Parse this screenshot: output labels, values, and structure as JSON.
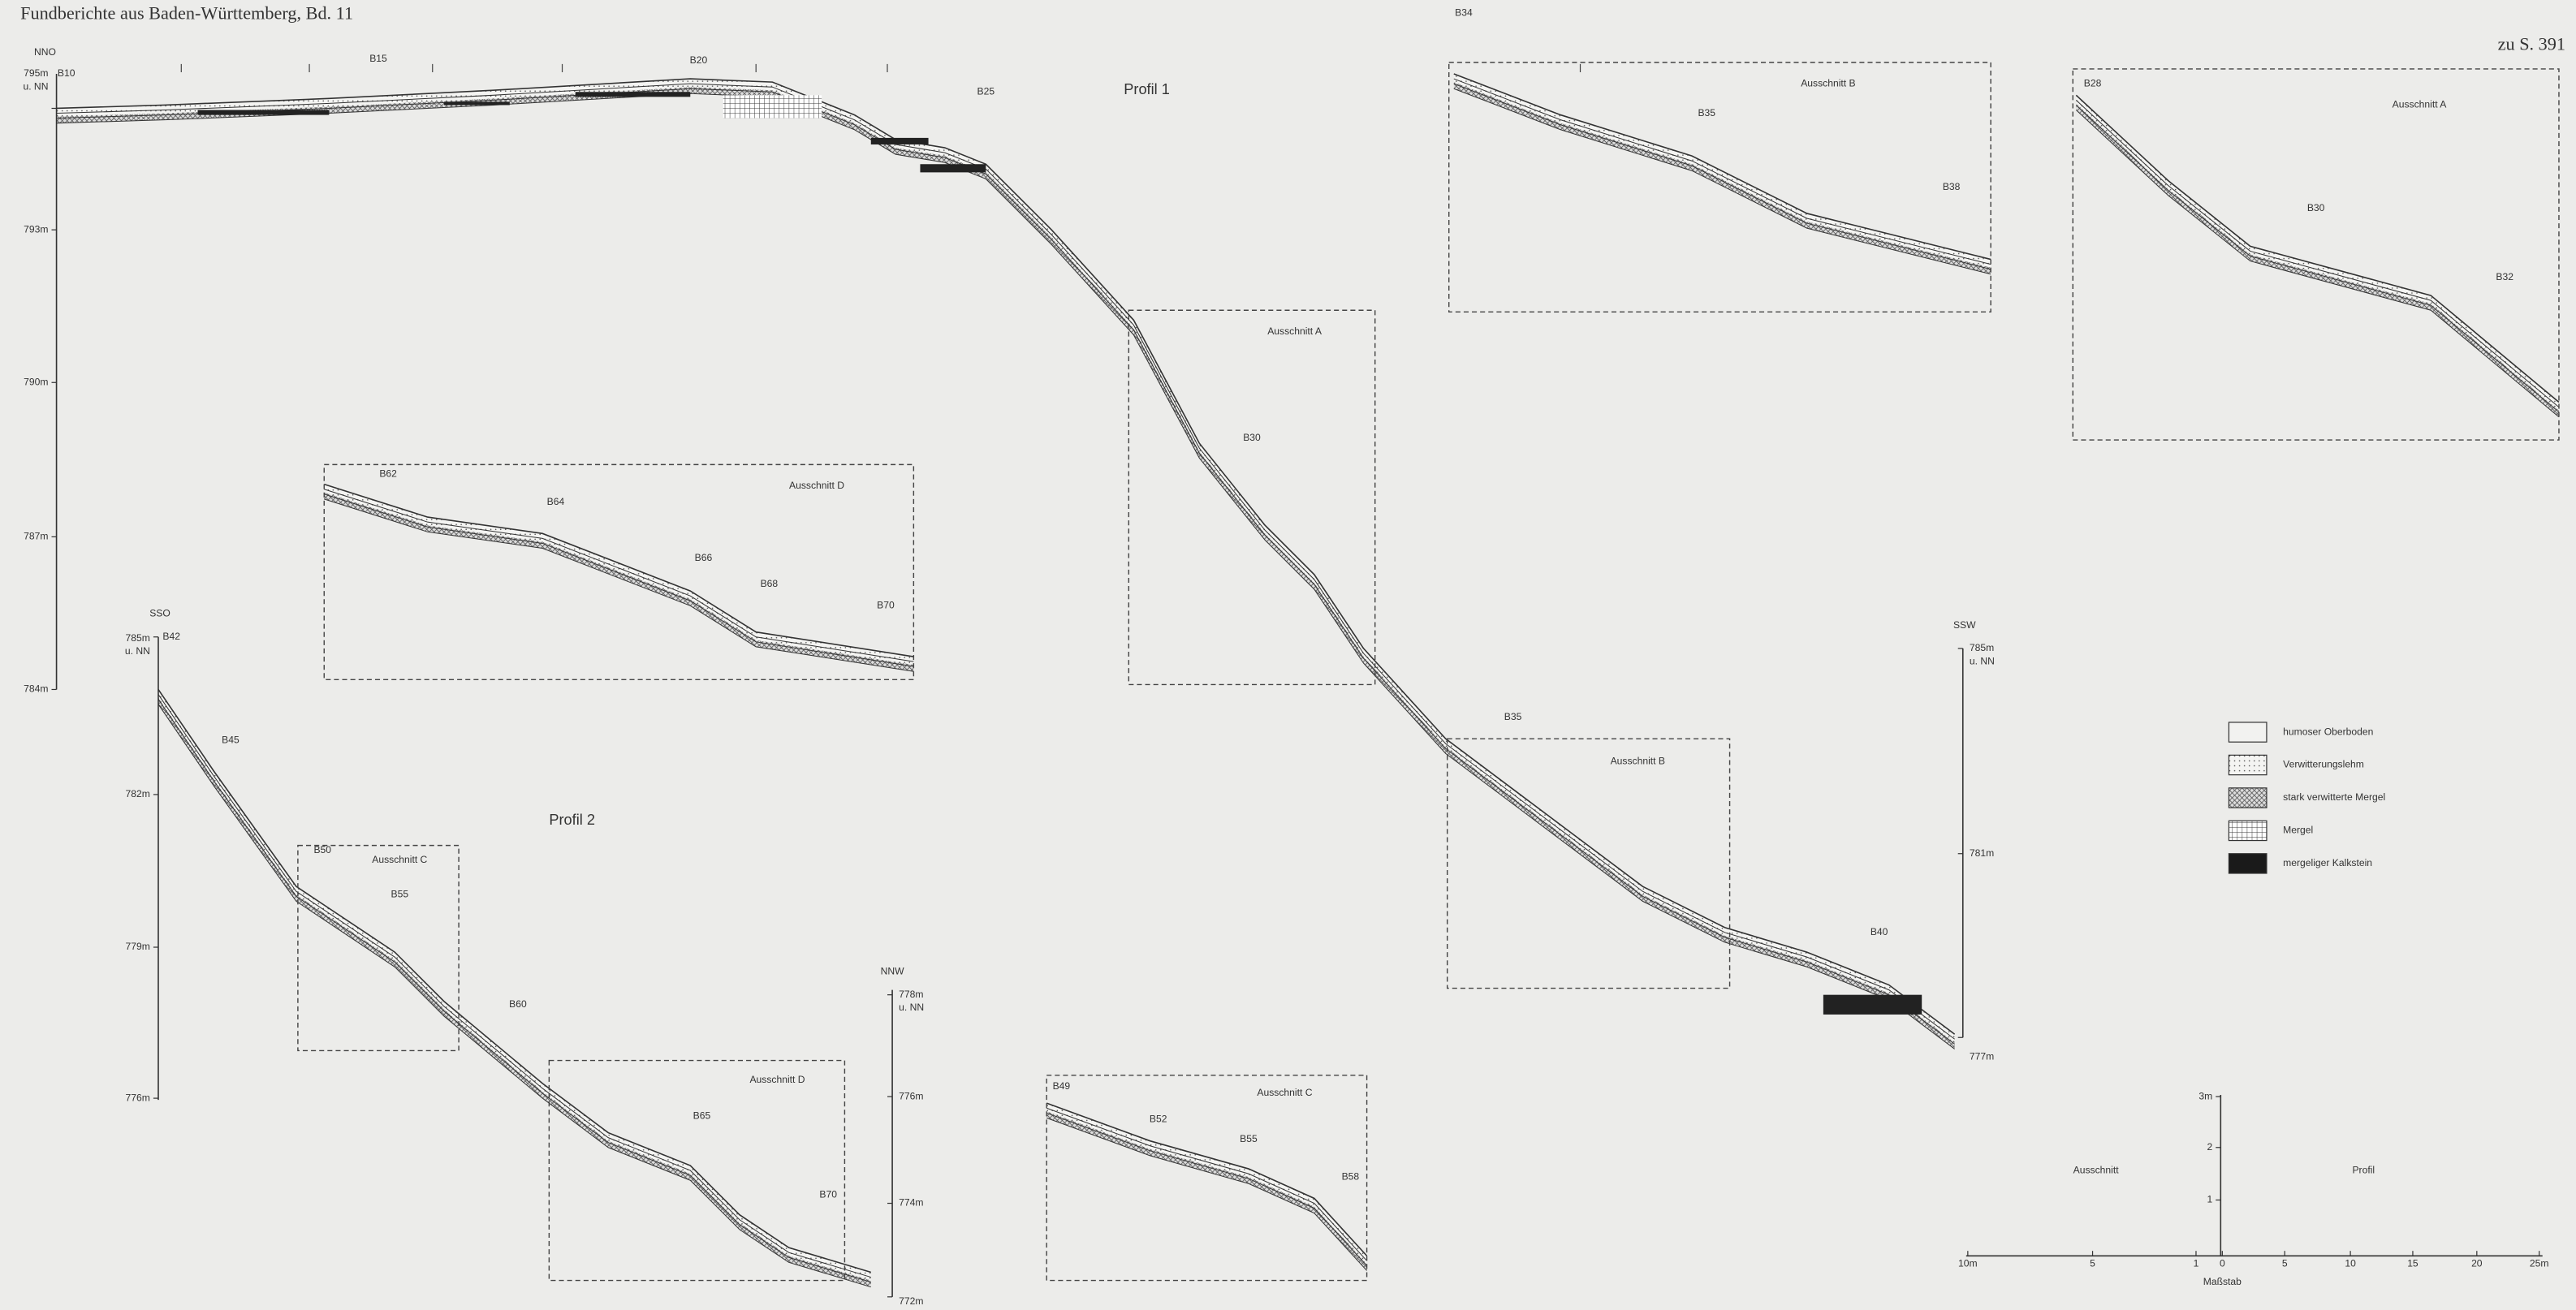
{
  "header": {
    "title": "Fundberichte aus Baden-Württemberg, Bd. 11",
    "page_ref": "zu S. 391"
  },
  "profil_1": {
    "title": "Profil 1",
    "labels": [
      "NNO",
      "SSW",
      "B10",
      "B15",
      "B20",
      "B25",
      "B30",
      "B35",
      "B40",
      "Ausschnitt A",
      "Ausschnitt B"
    ],
    "left_axis": [
      "795m",
      "u. NN",
      "793m",
      "790m",
      "787m",
      "784m"
    ],
    "right_axis": [
      "785m",
      "u. NN",
      "781m",
      "777m"
    ]
  },
  "profil_2": {
    "title": "Profil 2",
    "labels": [
      "SSO",
      "NNW",
      "B42",
      "B45",
      "B50",
      "B55",
      "B60",
      "B65",
      "B70",
      "Ausschnitt C",
      "Ausschnitt D"
    ],
    "left_axis": [
      "785m",
      "u. NN",
      "782m",
      "779m",
      "776m"
    ],
    "right_axis": [
      "778m",
      "u. NN",
      "776m",
      "774m",
      "772m"
    ]
  },
  "insets": [
    {
      "title": "Ausschnitt B",
      "labels": [
        "B34",
        "B35",
        "B38"
      ]
    },
    {
      "title": "Ausschnitt A",
      "labels": [
        "B28",
        "B30",
        "B32"
      ]
    },
    {
      "title": "Ausschnitt D",
      "labels": [
        "B62",
        "B64",
        "B66",
        "B68",
        "B70"
      ]
    },
    {
      "title": "Ausschnitt C",
      "labels": [
        "B49",
        "B52",
        "B55",
        "B58"
      ]
    }
  ],
  "legend": [
    "humoser Oberboden",
    "Verwitterungslehm",
    "stark verwitterte Mergel",
    "Mergel",
    "mergeliger Kalkstein"
  ],
  "scale": {
    "title": "Maßstab",
    "left": "Ausschnitt",
    "right": "Profil",
    "vertical": [
      "3m",
      "2",
      "1"
    ],
    "horizontal": [
      "10m",
      "5",
      "1",
      "0",
      "5",
      "10",
      "15",
      "20",
      "25m"
    ]
  }
}
